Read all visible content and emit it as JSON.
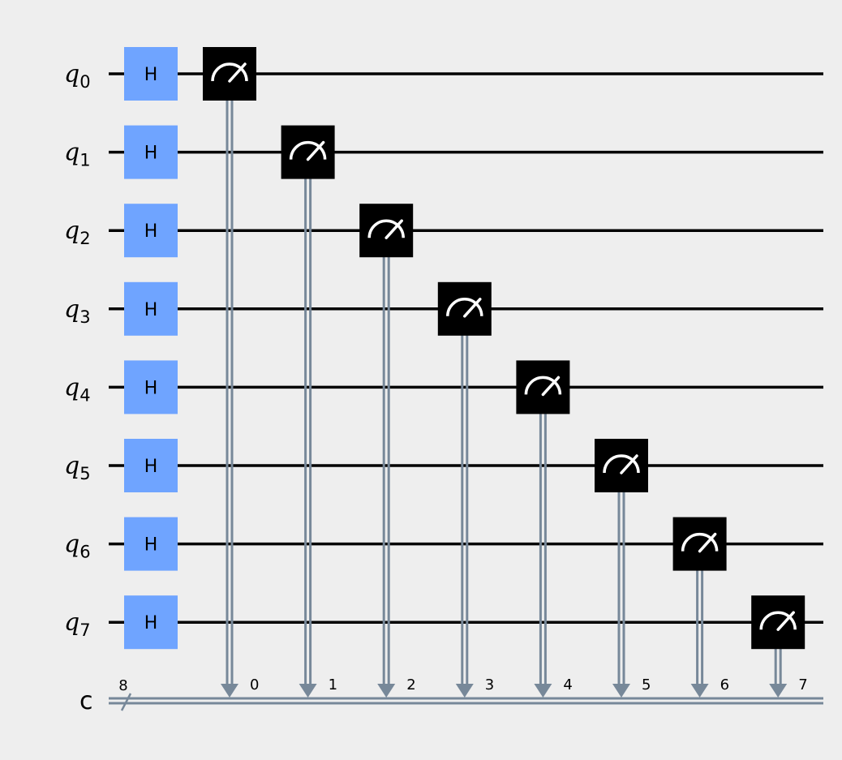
{
  "circuit": {
    "qubits": [
      {
        "name": "q",
        "index": "0"
      },
      {
        "name": "q",
        "index": "1"
      },
      {
        "name": "q",
        "index": "2"
      },
      {
        "name": "q",
        "index": "3"
      },
      {
        "name": "q",
        "index": "4"
      },
      {
        "name": "q",
        "index": "5"
      },
      {
        "name": "q",
        "index": "6"
      },
      {
        "name": "q",
        "index": "7"
      }
    ],
    "classical_register": {
      "label": "c",
      "width_label": "8"
    },
    "h_gate_label": "H",
    "measurements": [
      {
        "qubit": 0,
        "bit_label": "0"
      },
      {
        "qubit": 1,
        "bit_label": "1"
      },
      {
        "qubit": 2,
        "bit_label": "2"
      },
      {
        "qubit": 3,
        "bit_label": "3"
      },
      {
        "qubit": 4,
        "bit_label": "4"
      },
      {
        "qubit": 5,
        "bit_label": "5"
      },
      {
        "qubit": 6,
        "bit_label": "6"
      },
      {
        "qubit": 7,
        "bit_label": "7"
      }
    ],
    "colors": {
      "background": "#eeeeee",
      "h_gate": "#6fa4ff",
      "measure_gate": "#000000",
      "classical_wire": "#778899",
      "quantum_wire": "#000000"
    }
  }
}
